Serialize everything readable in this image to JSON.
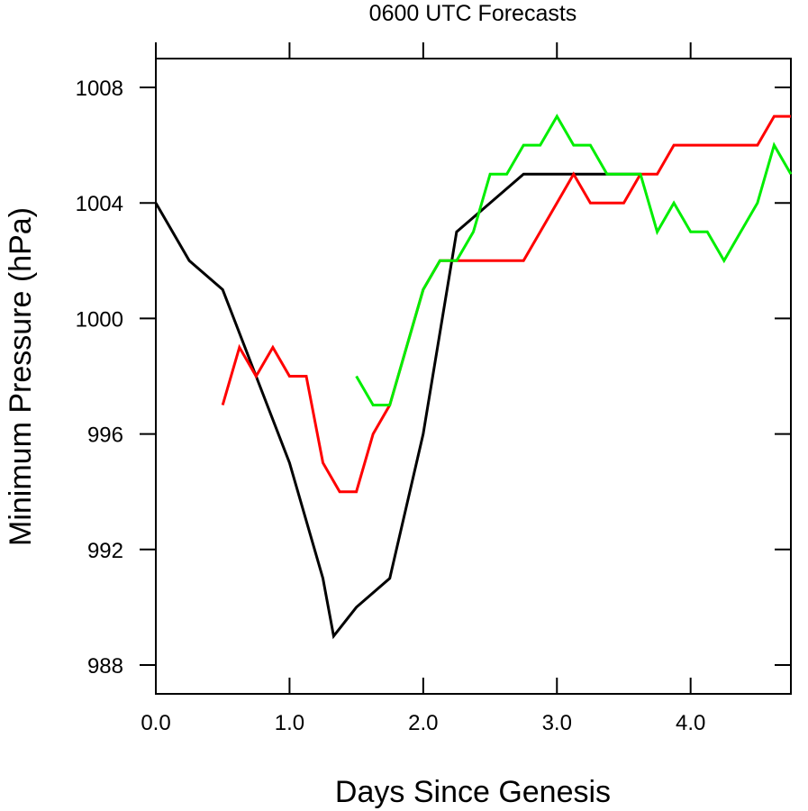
{
  "chart_data": {
    "type": "line",
    "title": "0600 UTC Forecasts",
    "xlabel": "Days Since Genesis",
    "ylabel": "Minimum Pressure (hPa)",
    "xlim": [
      0,
      4.75
    ],
    "ylim": [
      987,
      1009
    ],
    "x_ticks": [
      0,
      1,
      2,
      3,
      4
    ],
    "x_tick_labels": [
      "0.0",
      "1.0",
      "2.0",
      "3.0",
      "4.0"
    ],
    "y_ticks": [
      988,
      992,
      996,
      1000,
      1004,
      1008
    ],
    "y_tick_labels": [
      "988",
      "992",
      "996",
      "1000",
      "1004",
      "1008"
    ],
    "grid": false,
    "legend": "none",
    "series": [
      {
        "color": "#000000",
        "points": [
          [
            0,
            1004
          ],
          [
            0.25,
            1002
          ],
          [
            0.5,
            1001
          ],
          [
            0.75,
            998
          ],
          [
            1.0,
            995
          ],
          [
            1.25,
            991
          ],
          [
            1.33,
            989
          ],
          [
            1.5,
            990
          ],
          [
            1.75,
            991
          ],
          [
            2.0,
            996
          ],
          [
            2.25,
            1003
          ],
          [
            2.5,
            1004
          ],
          [
            2.75,
            1005
          ],
          [
            3.0,
            1005
          ],
          [
            3.25,
            1005
          ],
          [
            3.5,
            1005
          ],
          [
            3.625,
            1005
          ]
        ]
      },
      {
        "color": "#ff0000",
        "points": [
          [
            0.5,
            997
          ],
          [
            0.625,
            999
          ],
          [
            0.75,
            998
          ],
          [
            0.875,
            999
          ],
          [
            1.0,
            998
          ],
          [
            1.125,
            998
          ],
          [
            1.25,
            995
          ],
          [
            1.375,
            994
          ],
          [
            1.5,
            994
          ],
          [
            1.625,
            996
          ],
          [
            1.75,
            997
          ],
          [
            2.0,
            1001
          ],
          [
            2.125,
            1002
          ],
          [
            2.25,
            1002
          ],
          [
            2.5,
            1002
          ],
          [
            2.75,
            1002
          ],
          [
            3.0,
            1004
          ],
          [
            3.125,
            1005
          ],
          [
            3.25,
            1004
          ],
          [
            3.375,
            1004
          ],
          [
            3.5,
            1004
          ],
          [
            3.625,
            1005
          ],
          [
            3.75,
            1005
          ],
          [
            3.875,
            1006
          ],
          [
            4.0,
            1006
          ],
          [
            4.25,
            1006
          ],
          [
            4.5,
            1006
          ],
          [
            4.625,
            1007
          ],
          [
            4.75,
            1007
          ]
        ]
      },
      {
        "color": "#00ee00",
        "points": [
          [
            1.5,
            998
          ],
          [
            1.625,
            997
          ],
          [
            1.75,
            997
          ],
          [
            2.0,
            1001
          ],
          [
            2.125,
            1002
          ],
          [
            2.25,
            1002
          ],
          [
            2.375,
            1003
          ],
          [
            2.5,
            1005
          ],
          [
            2.625,
            1005
          ],
          [
            2.75,
            1006
          ],
          [
            2.875,
            1006
          ],
          [
            3.0,
            1007
          ],
          [
            3.125,
            1006
          ],
          [
            3.25,
            1006
          ],
          [
            3.375,
            1005
          ],
          [
            3.5,
            1005
          ],
          [
            3.625,
            1005
          ],
          [
            3.75,
            1003
          ],
          [
            3.875,
            1004
          ],
          [
            4.0,
            1003
          ],
          [
            4.125,
            1003
          ],
          [
            4.25,
            1002
          ],
          [
            4.375,
            1003
          ],
          [
            4.5,
            1004
          ],
          [
            4.625,
            1006
          ],
          [
            4.75,
            1005
          ]
        ]
      }
    ]
  }
}
